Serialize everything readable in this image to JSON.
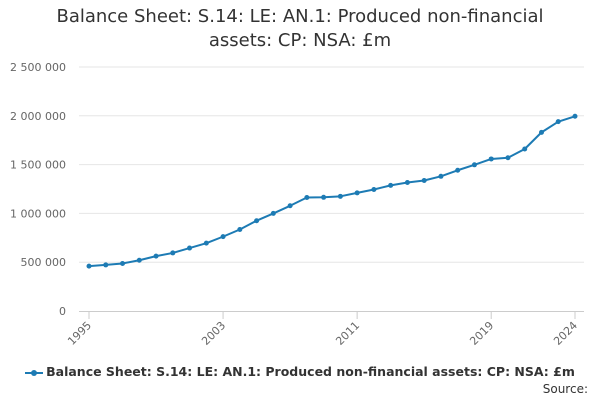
{
  "chart_data": {
    "type": "line",
    "title_line1": "Balance Sheet: S.14: LE: AN.1: Produced non-financial",
    "title_line2": "assets: CP: NSA: £m",
    "xlabel": "",
    "ylabel": "",
    "x": [
      1995,
      1996,
      1997,
      1998,
      1999,
      2000,
      2001,
      2002,
      2003,
      2004,
      2005,
      2006,
      2007,
      2008,
      2009,
      2010,
      2011,
      2012,
      2013,
      2014,
      2015,
      2016,
      2017,
      2018,
      2019,
      2020,
      2021,
      2022,
      2023,
      2024
    ],
    "x_tick_labels": [
      "1995",
      "2003",
      "2011",
      "2019",
      "2024"
    ],
    "y_tick_labels": [
      "0",
      "500 000",
      "1 000 000",
      "1 500 000",
      "2 000 000",
      "2 500 000"
    ],
    "ylim": [
      0,
      2500000
    ],
    "grid": true,
    "legend_position": "bottom",
    "series": [
      {
        "name": "Balance Sheet: S.14: LE: AN.1: Produced non-financial assets: CP: NSA: £m",
        "color": "#1d7bb4",
        "values": [
          460000,
          472000,
          487000,
          520000,
          562000,
          595000,
          645000,
          695000,
          762000,
          835000,
          925000,
          1000000,
          1078000,
          1163000,
          1165000,
          1175000,
          1210000,
          1245000,
          1287000,
          1317000,
          1337000,
          1380000,
          1442000,
          1498000,
          1558000,
          1570000,
          1660000,
          1830000,
          1940000,
          1995000
        ]
      }
    ]
  },
  "source_label": "Source:"
}
